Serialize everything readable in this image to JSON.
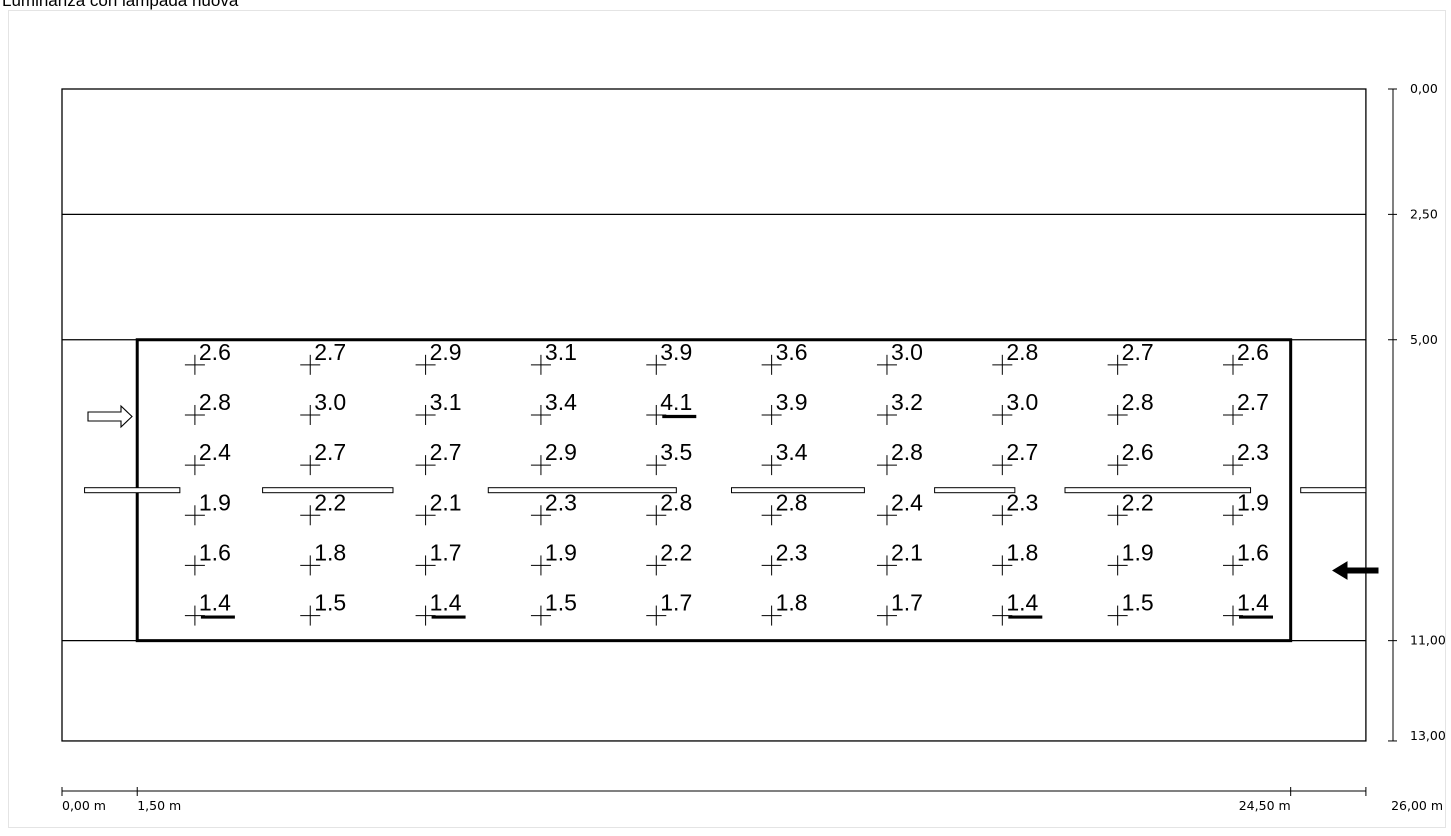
{
  "title": "Luminanza con lampada nuova",
  "x_scale": {
    "labels": [
      "0,00 m",
      "1,50 m",
      "24,50 m",
      "26,00 m"
    ],
    "values_m": [
      0.0,
      1.5,
      24.5,
      26.0
    ]
  },
  "y_scale": {
    "labels": [
      "0,00",
      "2,50",
      "5,00",
      "11,00",
      "13,00"
    ],
    "values_m": [
      0.0,
      2.5,
      5.0,
      11.0,
      13.0
    ]
  },
  "road": {
    "width_m": 26.0,
    "depth_m": 13.0,
    "lane_boundaries_m": [
      2.5,
      5.0,
      11.0
    ],
    "measured_area_m": {
      "x0": 1.5,
      "x1": 24.5,
      "y0": 5.0,
      "y1": 11.0
    },
    "center_line_m": 8.0
  },
  "traffic_directions": [
    {
      "name": "upper-lane",
      "direction": "right",
      "style": "outline"
    },
    {
      "name": "lower-lane",
      "direction": "left",
      "style": "solid"
    }
  ],
  "luminance_grid": {
    "columns_x_m": [
      2.65,
      4.95,
      7.25,
      9.55,
      11.85,
      14.15,
      16.45,
      18.75,
      21.05,
      23.35
    ],
    "rows_y_m": [
      5.5,
      6.5,
      7.5,
      8.5,
      9.5,
      10.5
    ],
    "rows": [
      [
        "2.6",
        "2.7",
        "2.9",
        "3.1",
        "3.9",
        "3.6",
        "3.0",
        "2.8",
        "2.7",
        "2.6"
      ],
      [
        "2.8",
        "3.0",
        "3.1",
        "3.4",
        "4.1",
        "3.9",
        "3.2",
        "3.0",
        "2.8",
        "2.7"
      ],
      [
        "2.4",
        "2.7",
        "2.7",
        "2.9",
        "3.5",
        "3.4",
        "2.8",
        "2.7",
        "2.6",
        "2.3"
      ],
      [
        "1.9",
        "2.2",
        "2.1",
        "2.3",
        "2.8",
        "2.8",
        "2.4",
        "2.3",
        "2.2",
        "1.9"
      ],
      [
        "1.6",
        "1.8",
        "1.7",
        "1.9",
        "2.2",
        "2.3",
        "2.1",
        "1.8",
        "1.9",
        "1.6"
      ],
      [
        "1.4",
        "1.5",
        "1.4",
        "1.5",
        "1.7",
        "1.8",
        "1.7",
        "1.4",
        "1.5",
        "1.4"
      ]
    ],
    "max_value": "4.1",
    "min_value": "1.4"
  }
}
